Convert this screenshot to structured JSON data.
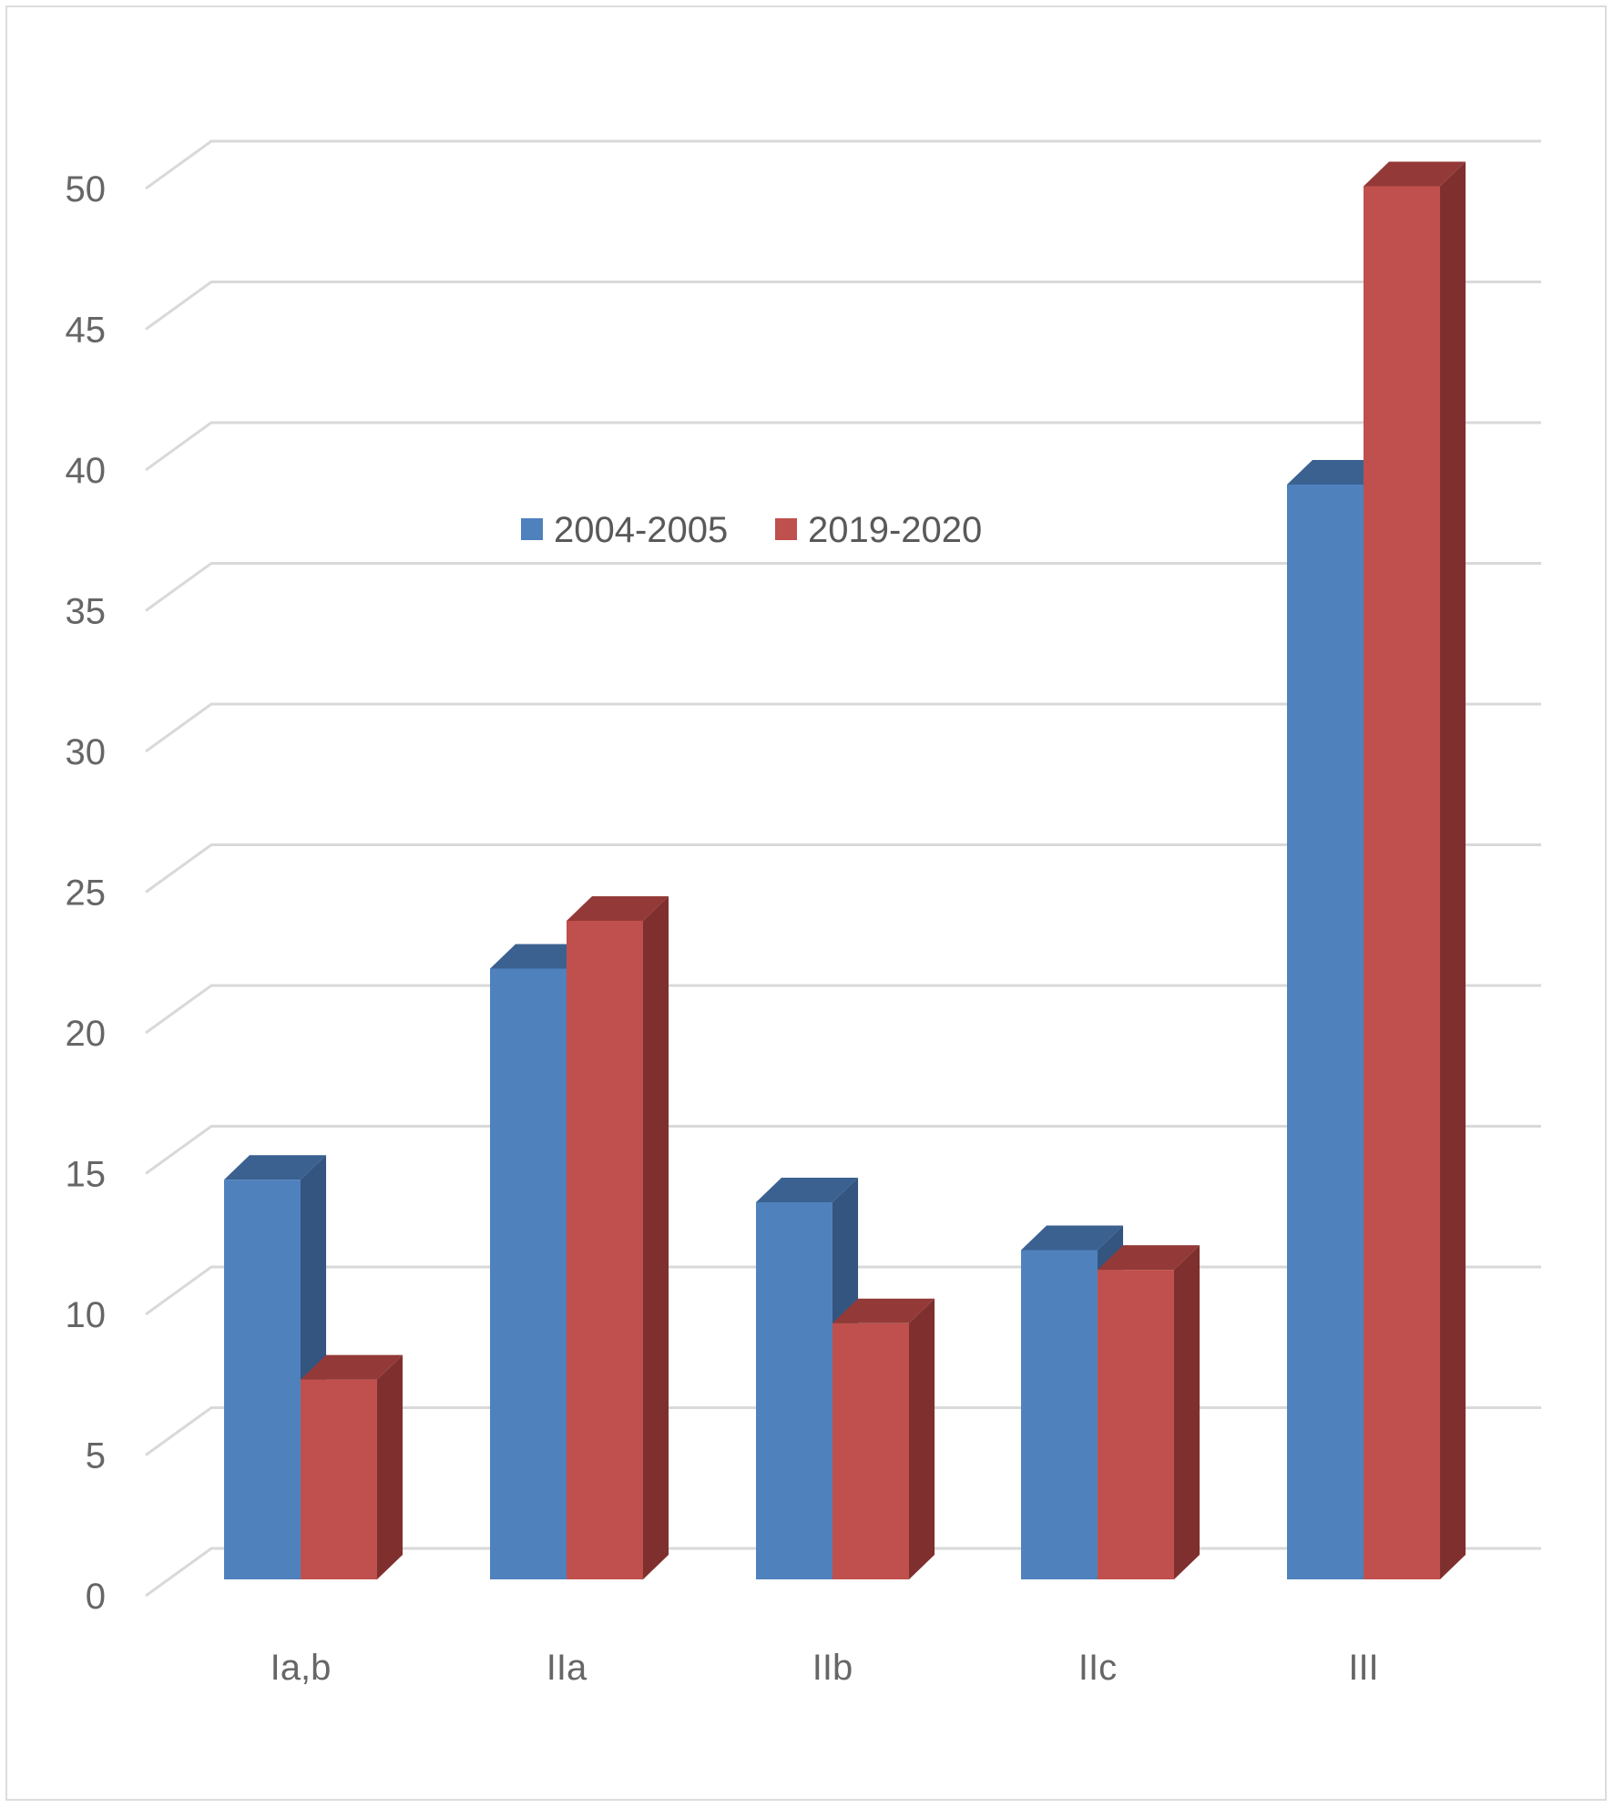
{
  "chart_data": {
    "type": "bar",
    "categories": [
      "Ia,b",
      "IIa",
      "IIb",
      "IIc",
      "III"
    ],
    "series": [
      {
        "name": "2004-2005",
        "values": [
          14.2,
          21.7,
          13.4,
          11.7,
          38.9
        ],
        "color": "#4f81bd",
        "side_color": "#34557f",
        "top_color": "#3b6191"
      },
      {
        "name": "2019-2020",
        "values": [
          7.1,
          23.4,
          9.1,
          11.0,
          49.5
        ],
        "color": "#c0504d",
        "side_color": "#7f302e",
        "top_color": "#933a38"
      }
    ],
    "ylim": [
      0,
      50
    ],
    "yticks": [
      "0",
      "5",
      "10",
      "15",
      "20",
      "25",
      "30",
      "35",
      "40",
      "45",
      "50"
    ],
    "grid": true,
    "legend_position": "top-center",
    "style": "3d-clustered-column"
  }
}
